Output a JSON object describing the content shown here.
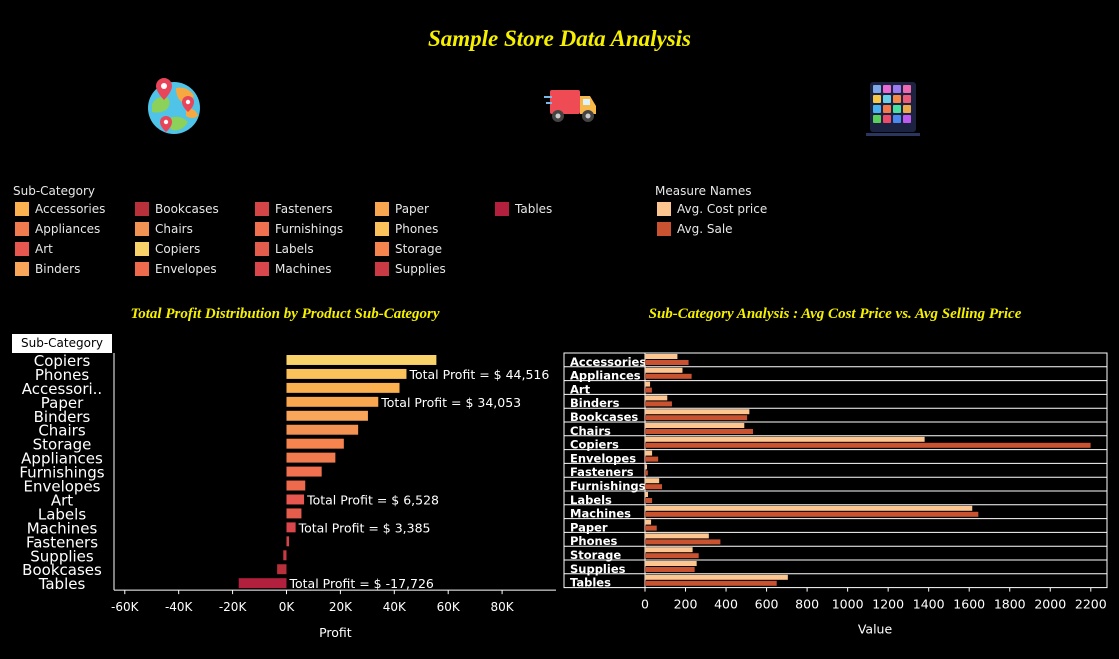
{
  "title": "Sample Store Data Analysis",
  "icons": {
    "map": "map-globe-icon",
    "truck": "delivery-truck-icon",
    "dashboard": "app-grid-icon"
  },
  "legend_subcat": {
    "title": "Sub-Category",
    "items": [
      {
        "label": "Accessories",
        "color": "#fbb150"
      },
      {
        "label": "Appliances",
        "color": "#f07b4f"
      },
      {
        "label": "Art",
        "color": "#e6574f"
      },
      {
        "label": "Binders",
        "color": "#f9a55a"
      },
      {
        "label": "Bookcases",
        "color": "#b8303a"
      },
      {
        "label": "Chairs",
        "color": "#f29253"
      },
      {
        "label": "Copiers",
        "color": "#fad26a"
      },
      {
        "label": "Envelopes",
        "color": "#ee6a4c"
      },
      {
        "label": "Fasteners",
        "color": "#d44548"
      },
      {
        "label": "Furnishings",
        "color": "#f07050"
      },
      {
        "label": "Labels",
        "color": "#e35c4c"
      },
      {
        "label": "Machines",
        "color": "#d9474c"
      },
      {
        "label": "Paper",
        "color": "#f9a650"
      },
      {
        "label": "Phones",
        "color": "#fbc15a"
      },
      {
        "label": "Storage",
        "color": "#f6844e"
      },
      {
        "label": "Supplies",
        "color": "#c93a44"
      },
      {
        "label": "Tables",
        "color": "#b3203e"
      }
    ]
  },
  "legend_measure": {
    "title": "Measure Names",
    "items": [
      {
        "label": "Avg. Cost price",
        "color": "#fdc590"
      },
      {
        "label": "Avg. Sale",
        "color": "#c95230"
      }
    ]
  },
  "chart_profit": {
    "title": "Total Profit Distribution by Product Sub-Category",
    "header": "Sub-Category",
    "xlabel": "Profit",
    "chart_data": {
      "type": "bar",
      "orientation": "horizontal",
      "categories": [
        "Copiers",
        "Phones",
        "Accessori..",
        "Paper",
        "Binders",
        "Chairs",
        "Storage",
        "Appliances",
        "Furnishings",
        "Envelopes",
        "Art",
        "Labels",
        "Machines",
        "Fasteners",
        "Supplies",
        "Bookcases",
        "Tables"
      ],
      "values": [
        55618,
        44516,
        41937,
        34053,
        30222,
        26590,
        21279,
        18138,
        13059,
        6964,
        6528,
        5546,
        3385,
        950,
        -1189,
        -3473,
        -17726
      ],
      "colors": [
        "#fad26a",
        "#fbc15a",
        "#fbb150",
        "#f9a650",
        "#f9a55a",
        "#f29253",
        "#f6844e",
        "#f07b4f",
        "#f07050",
        "#ee6a4c",
        "#e6574f",
        "#e35c4c",
        "#d9474c",
        "#d44548",
        "#c93a44",
        "#b8303a",
        "#b3203e"
      ],
      "labels": [
        {
          "category": "Phones",
          "text": "Total Profit = $ 44,516"
        },
        {
          "category": "Paper",
          "text": "Total Profit = $ 34,053"
        },
        {
          "category": "Art",
          "text": "Total Profit = $ 6,528"
        },
        {
          "category": "Machines",
          "text": "Total Profit = $ 3,385"
        },
        {
          "category": "Tables",
          "text": "Total Profit = $ -17,726"
        }
      ],
      "ticks": [
        -60000,
        -40000,
        -20000,
        0,
        20000,
        40000,
        60000,
        80000
      ],
      "tick_labels": [
        "-60K",
        "-40K",
        "-20K",
        "0K",
        "20K",
        "40K",
        "60K",
        "80K"
      ],
      "xlim": [
        -64000,
        100000
      ]
    }
  },
  "chart_avg": {
    "title": "Sub-Category Analysis : Avg Cost Price vs. Avg Selling Price",
    "xlabel": "Value",
    "chart_data": {
      "type": "bar",
      "orientation": "horizontal",
      "categories": [
        "Accessories",
        "Appliances",
        "Art",
        "Binders",
        "Bookcases",
        "Chairs",
        "Copiers",
        "Envelopes",
        "Fasteners",
        "Furnishings",
        "Labels",
        "Machines",
        "Paper",
        "Phones",
        "Storage",
        "Supplies",
        "Tables"
      ],
      "series": [
        {
          "name": "Avg. Cost price",
          "color": "#fdc590",
          "values": [
            160,
            185,
            25,
            110,
            515,
            490,
            1380,
            35,
            10,
            70,
            15,
            1615,
            30,
            315,
            235,
            255,
            705
          ]
        },
        {
          "name": "Avg. Sale",
          "color": "#c95230",
          "values": [
            215,
            230,
            34,
            133,
            504,
            533,
            2199,
            65,
            14,
            84,
            35,
            1645,
            58,
            372,
            265,
            245,
            650
          ]
        }
      ],
      "ticks": [
        0,
        200,
        400,
        600,
        800,
        1000,
        1200,
        1400,
        1600,
        1800,
        2000,
        2200
      ],
      "xlim": [
        0,
        2280
      ]
    }
  }
}
